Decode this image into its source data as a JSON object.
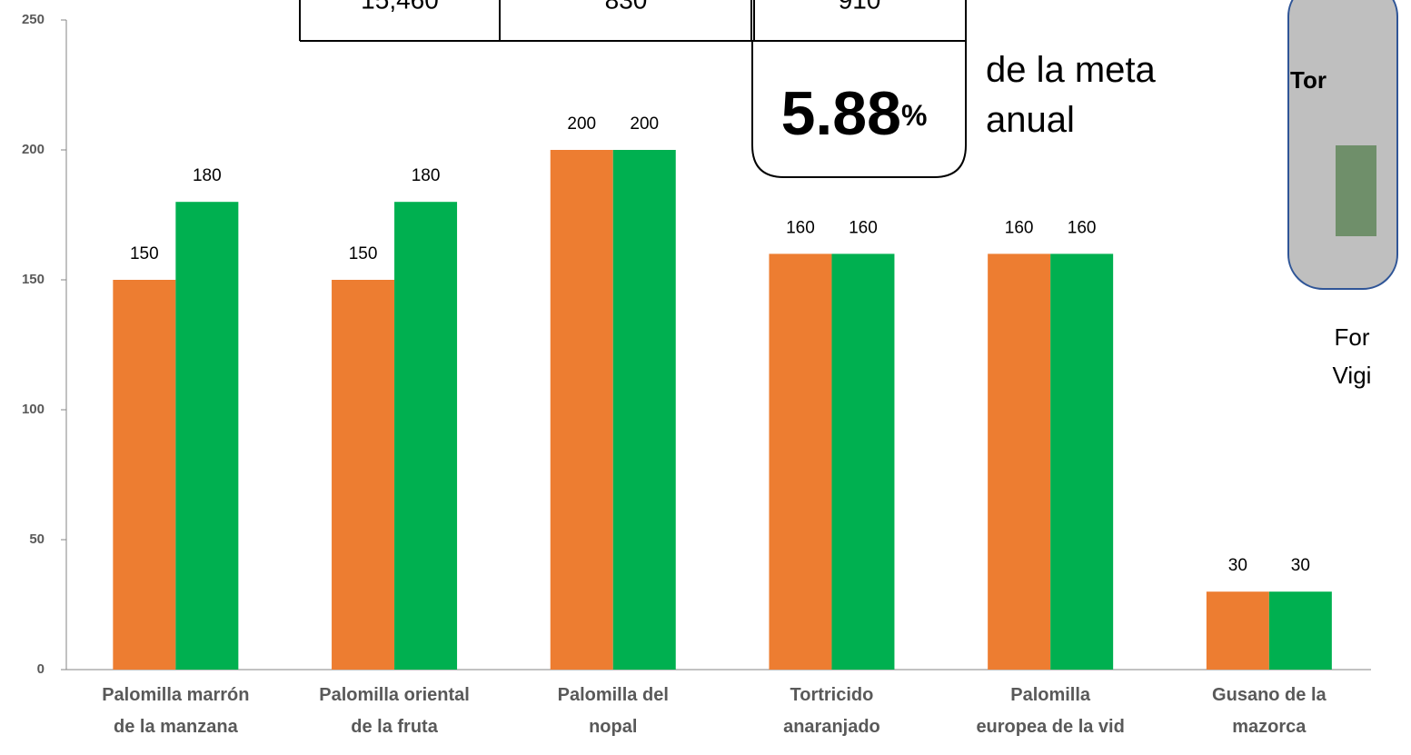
{
  "chart_data": {
    "type": "bar",
    "categories": [
      "Palomilla marrón\nde la manzana",
      "Palomilla oriental\nde la fruta",
      "Palomilla del\nnopal",
      "Tortricido\nanaranjado",
      "Palomilla\neuropea de la vid",
      "Gusano de la\nmazorca"
    ],
    "series": [
      {
        "color": "#ed7d31",
        "values": [
          150,
          150,
          200,
          160,
          160,
          30
        ]
      },
      {
        "color": "#00b050",
        "values": [
          180,
          180,
          200,
          160,
          160,
          30
        ]
      }
    ],
    "ylim": [
      0,
      250
    ],
    "yticks": [
      0,
      50,
      100,
      150,
      200,
      250
    ],
    "grid": false
  },
  "table": {
    "rows": [
      [
        "15,460",
        "830",
        "910"
      ]
    ]
  },
  "callout": {
    "value": "5.88",
    "unit": "%",
    "caption": "de la meta\nanual"
  },
  "side_panel": {
    "title": "Tor",
    "caption": "For\nVigi"
  }
}
